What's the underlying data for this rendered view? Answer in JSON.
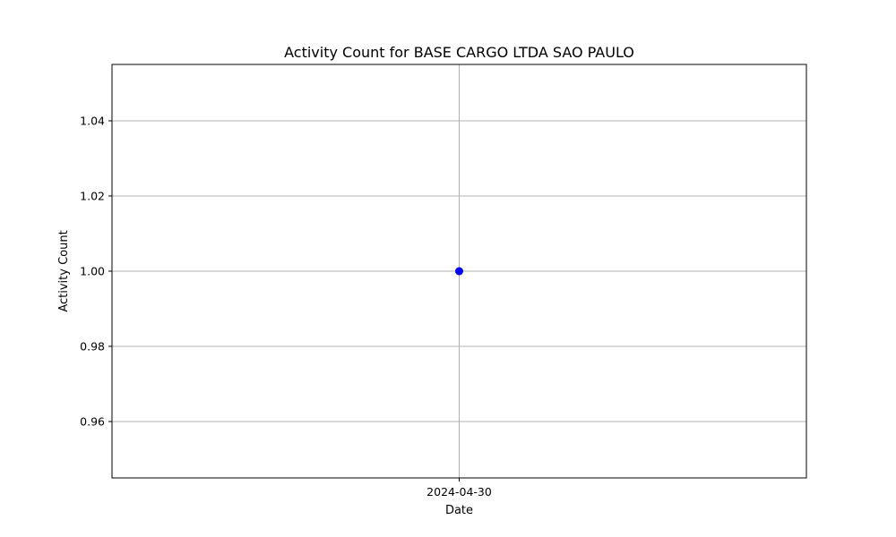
{
  "chart_data": {
    "type": "line",
    "title": "Activity Count for BASE CARGO LTDA SAO PAULO",
    "xlabel": "Date",
    "ylabel": "Activity Count",
    "categories": [
      "2024-04-30"
    ],
    "series": [
      {
        "name": "Activity Count",
        "values": [
          1.0
        ],
        "color": "#0000ff",
        "marker": "circle"
      }
    ],
    "ylim": [
      0.945,
      1.055
    ],
    "yticks": [
      0.96,
      0.98,
      1.0,
      1.02,
      1.04
    ],
    "ytick_labels": [
      "0.96",
      "0.98",
      "1.00",
      "1.02",
      "1.04"
    ],
    "grid": true
  }
}
